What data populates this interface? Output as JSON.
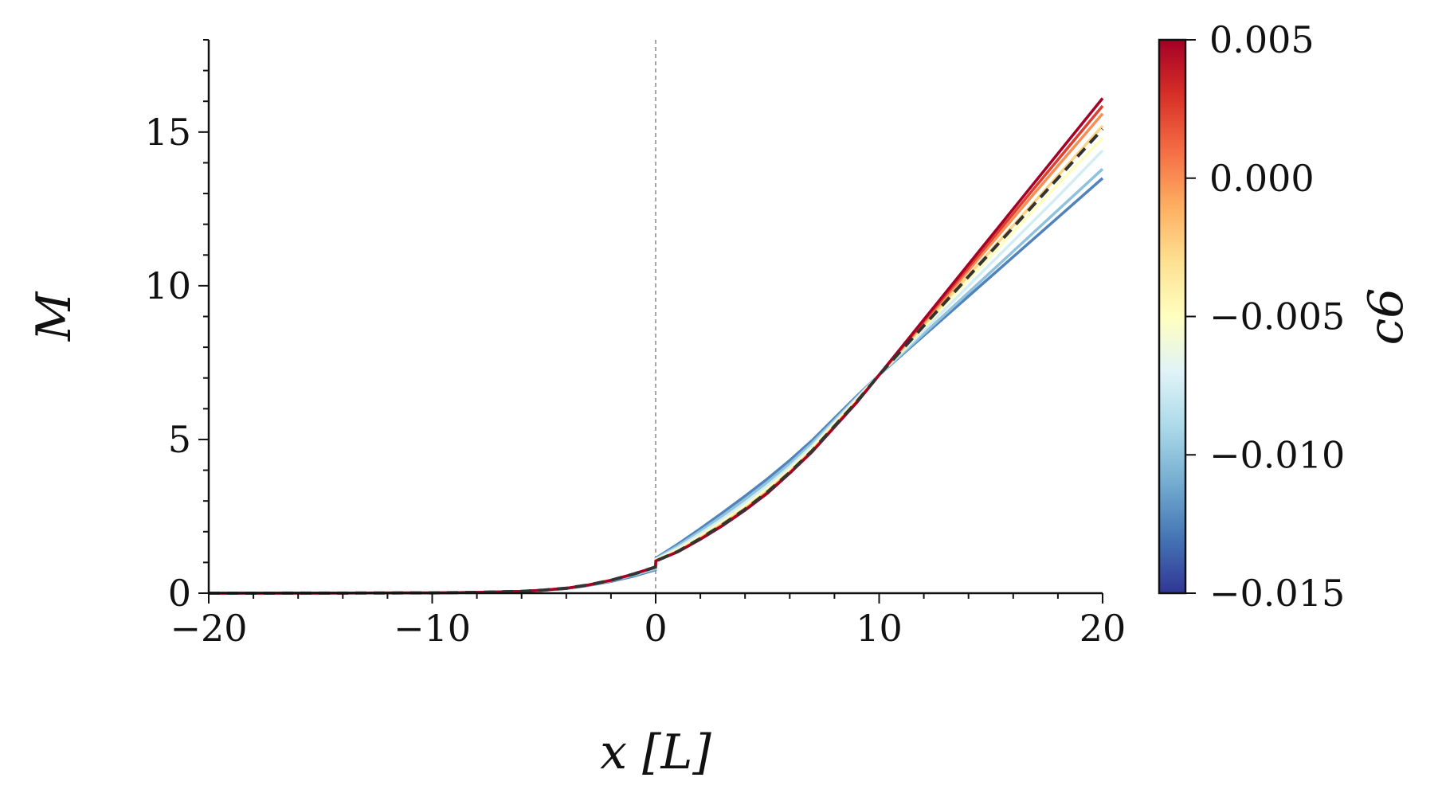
{
  "chart_data": {
    "type": "line",
    "xlabel": "x [L]",
    "ylabel": "M",
    "xlim": [
      -20,
      20
    ],
    "ylim": [
      0,
      18
    ],
    "xticks": [
      {
        "value": -20,
        "label": "−20"
      },
      {
        "value": -10,
        "label": "−10"
      },
      {
        "value": 0,
        "label": "0"
      },
      {
        "value": 10,
        "label": "10"
      },
      {
        "value": 20,
        "label": "20"
      }
    ],
    "yticks": [
      {
        "value": 0,
        "label": "0"
      },
      {
        "value": 5,
        "label": "5"
      },
      {
        "value": 10,
        "label": "10"
      },
      {
        "value": 15,
        "label": "15"
      }
    ],
    "vline_x": 0,
    "x": [
      -20,
      -15,
      -10,
      -8,
      -6,
      -5,
      -4,
      -3,
      -2,
      -1,
      -0.01,
      0.01,
      1,
      2,
      3,
      4,
      5,
      6,
      7,
      8,
      9,
      10,
      12,
      14,
      16,
      18,
      20
    ],
    "series": [
      {
        "c6": 0.005,
        "values": [
          0.001,
          0.002,
          0.01,
          0.025,
          0.06,
          0.1,
          0.16,
          0.27,
          0.42,
          0.62,
          0.85,
          1.05,
          1.35,
          1.75,
          2.2,
          2.7,
          3.25,
          3.9,
          4.6,
          5.4,
          6.2,
          7.1,
          8.9,
          10.7,
          12.5,
          14.3,
          16.1
        ]
      },
      {
        "c6": 0.0025,
        "values": [
          0.001,
          0.002,
          0.01,
          0.025,
          0.06,
          0.1,
          0.16,
          0.27,
          0.42,
          0.62,
          0.85,
          1.05,
          1.35,
          1.76,
          2.21,
          2.71,
          3.27,
          3.91,
          4.61,
          5.41,
          6.21,
          7.1,
          8.85,
          10.6,
          12.35,
          14.1,
          15.85
        ]
      },
      {
        "c6": 0.0,
        "values": [
          0.001,
          0.002,
          0.01,
          0.025,
          0.06,
          0.1,
          0.16,
          0.27,
          0.42,
          0.62,
          0.85,
          1.05,
          1.35,
          1.77,
          2.22,
          2.72,
          3.28,
          3.92,
          4.62,
          5.42,
          6.22,
          7.1,
          8.8,
          10.5,
          12.2,
          13.9,
          15.6
        ]
      },
      {
        "c6": -0.0025,
        "values": [
          0.001,
          0.002,
          0.01,
          0.025,
          0.06,
          0.1,
          0.16,
          0.27,
          0.42,
          0.62,
          0.85,
          1.06,
          1.37,
          1.8,
          2.26,
          2.76,
          3.32,
          3.95,
          4.65,
          5.45,
          6.25,
          7.1,
          8.72,
          10.34,
          11.96,
          13.58,
          15.2
        ]
      },
      {
        "c6": -0.005,
        "values": [
          0.001,
          0.002,
          0.01,
          0.025,
          0.06,
          0.1,
          0.16,
          0.27,
          0.42,
          0.62,
          0.85,
          1.08,
          1.42,
          1.86,
          2.33,
          2.84,
          3.4,
          4.02,
          4.71,
          5.5,
          6.29,
          7.1,
          8.65,
          10.2,
          11.75,
          13.3,
          14.8
        ]
      },
      {
        "c6": -0.0075,
        "values": [
          0.001,
          0.002,
          0.01,
          0.025,
          0.06,
          0.1,
          0.16,
          0.27,
          0.42,
          0.61,
          0.82,
          1.1,
          1.48,
          1.94,
          2.42,
          2.94,
          3.5,
          4.11,
          4.79,
          5.56,
          6.33,
          7.1,
          8.55,
          10.0,
          11.45,
          12.9,
          14.4
        ]
      },
      {
        "c6": -0.01,
        "values": [
          0.001,
          0.002,
          0.01,
          0.025,
          0.06,
          0.1,
          0.16,
          0.26,
          0.4,
          0.58,
          0.79,
          1.12,
          1.54,
          2.02,
          2.52,
          3.05,
          3.61,
          4.21,
          4.88,
          5.62,
          6.37,
          7.1,
          8.44,
          9.78,
          11.12,
          12.46,
          13.8
        ]
      },
      {
        "c6": -0.0125,
        "values": [
          0.001,
          0.002,
          0.01,
          0.025,
          0.06,
          0.1,
          0.15,
          0.25,
          0.38,
          0.55,
          0.76,
          1.14,
          1.6,
          2.1,
          2.62,
          3.16,
          3.72,
          4.32,
          4.97,
          5.69,
          6.41,
          7.1,
          8.38,
          9.66,
          10.94,
          12.22,
          13.5
        ]
      }
    ],
    "reference": {
      "style": "dashed",
      "color": "#333333",
      "values": [
        0.001,
        0.002,
        0.01,
        0.025,
        0.06,
        0.1,
        0.16,
        0.27,
        0.42,
        0.62,
        0.85,
        1.05,
        1.36,
        1.78,
        2.23,
        2.73,
        3.29,
        3.93,
        4.63,
        5.43,
        6.23,
        7.1,
        8.7,
        10.3,
        11.9,
        13.5,
        15.1
      ]
    },
    "colorbar": {
      "label": "c6",
      "min": -0.015,
      "max": 0.005,
      "colormap": "RdYlBu_r",
      "ticks": [
        {
          "value": 0.005,
          "label": "0.005"
        },
        {
          "value": 0.0,
          "label": "0.000"
        },
        {
          "value": -0.005,
          "label": "−0.005"
        },
        {
          "value": -0.01,
          "label": "−0.010"
        },
        {
          "value": -0.015,
          "label": "−0.015"
        }
      ]
    }
  }
}
